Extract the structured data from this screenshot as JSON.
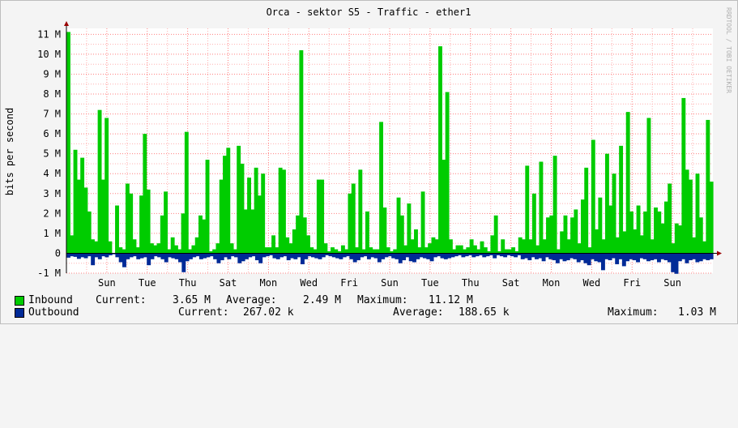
{
  "chart_data": {
    "type": "area",
    "title": "Orca - sektor S5 - Traffic - ether1",
    "ylabel": "bits per second",
    "watermark": "RRDTOOL / TOBI OETIKER",
    "ylim": [
      -1000000,
      11300000
    ],
    "yticks": [
      {
        "value": -1000000,
        "label": "-1 M"
      },
      {
        "value": 0,
        "label": "0"
      },
      {
        "value": 1000000,
        "label": "1 M"
      },
      {
        "value": 2000000,
        "label": "2 M"
      },
      {
        "value": 3000000,
        "label": "3 M"
      },
      {
        "value": 4000000,
        "label": "4 M"
      },
      {
        "value": 5000000,
        "label": "5 M"
      },
      {
        "value": 6000000,
        "label": "6 M"
      },
      {
        "value": 7000000,
        "label": "7 M"
      },
      {
        "value": 8000000,
        "label": "8 M"
      },
      {
        "value": 9000000,
        "label": "9 M"
      },
      {
        "value": 10000000,
        "label": "10 M"
      },
      {
        "value": 11000000,
        "label": "11 M"
      }
    ],
    "xlim": [
      0,
      16
    ],
    "xticks": [
      {
        "value": 1,
        "label": "Sun"
      },
      {
        "value": 2,
        "label": "Tue"
      },
      {
        "value": 3,
        "label": "Thu"
      },
      {
        "value": 4,
        "label": "Sat"
      },
      {
        "value": 5,
        "label": "Mon"
      },
      {
        "value": 6,
        "label": "Wed"
      },
      {
        "value": 7,
        "label": "Fri"
      },
      {
        "value": 8,
        "label": "Sun"
      },
      {
        "value": 9,
        "label": "Tue"
      },
      {
        "value": 10,
        "label": "Thu"
      },
      {
        "value": 11,
        "label": "Sat"
      },
      {
        "value": 12,
        "label": "Mon"
      },
      {
        "value": 13,
        "label": "Wed"
      },
      {
        "value": 14,
        "label": "Fri"
      },
      {
        "value": 15,
        "label": "Sun"
      }
    ],
    "grid": true,
    "colors": {
      "inbound": "#00cc00",
      "outbound": "#002a97",
      "minor_grid": "#ffb0b0",
      "major_grid": "#ff7f7f",
      "axis_arrow": "#990000",
      "canvas": "#ffffff",
      "background": "#f4f4f4"
    },
    "series": [
      {
        "name": "Inbound",
        "color": "#00cc00",
        "values": [
          11.12,
          0.9,
          5.2,
          3.7,
          4.8,
          3.3,
          2.1,
          0.7,
          0.6,
          7.2,
          3.7,
          6.8,
          0.6,
          0,
          2.4,
          0.3,
          0.2,
          3.5,
          3.0,
          0.7,
          0.3,
          2.9,
          6.0,
          3.2,
          0.5,
          0.4,
          0.5,
          1.9,
          3.1,
          0.2,
          0.8,
          0.4,
          0.2,
          2.0,
          6.1,
          0.2,
          0.4,
          0.8,
          1.9,
          1.7,
          4.7,
          0.1,
          0.2,
          0.5,
          3.7,
          4.9,
          5.3,
          0.5,
          0.2,
          5.4,
          4.5,
          2.2,
          3.8,
          2.2,
          4.3,
          2.9,
          4.0,
          0.3,
          0.3,
          0.9,
          0.3,
          4.3,
          4.2,
          0.8,
          0.5,
          1.2,
          1.9,
          10.2,
          1.8,
          0.9,
          0.3,
          0.2,
          3.7,
          3.7,
          0.5,
          0.1,
          0.3,
          0.2,
          0.1,
          0.4,
          0.2,
          3.0,
          3.5,
          0.3,
          4.2,
          0.2,
          2.1,
          0.3,
          0.2,
          0.2,
          6.6,
          2.3,
          0.3,
          0.1,
          0.2,
          2.8,
          1.9,
          0.4,
          2.5,
          0.7,
          1.2,
          0.3,
          3.1,
          0.3,
          0.5,
          0.8,
          0.7,
          10.4,
          4.7,
          8.1,
          0.7,
          0.2,
          0.4,
          0.4,
          0.2,
          0.3,
          0.7,
          0.4,
          0.2,
          0.6,
          0.3,
          0.1,
          0.9,
          1.9,
          0.1,
          0.7,
          0.2,
          0.2,
          0.3,
          0.1,
          0.8,
          0.7,
          4.4,
          0.7,
          3.0,
          0.4,
          4.6,
          0.7,
          1.8,
          1.9,
          4.9,
          0.2,
          1.1,
          1.9,
          0.7,
          1.8,
          2.2,
          0.5,
          2.7,
          4.3,
          0.3,
          5.7,
          1.2,
          2.8,
          0.7,
          5.0,
          2.4,
          4.0,
          0.8,
          5.4,
          1.1,
          7.1,
          2.1,
          1.2,
          2.4,
          0.9,
          2.1,
          6.8,
          0.7,
          2.3,
          2.1,
          1.5,
          2.6,
          3.5,
          0.5,
          1.5,
          1.4,
          7.8,
          4.2,
          3.7,
          0.8,
          4.0,
          1.8,
          0.6,
          6.7,
          3.6
        ]
      },
      {
        "name": "Outbound",
        "color": "#002a97",
        "values": [
          -0.22,
          -0.15,
          -0.18,
          -0.28,
          -0.2,
          -0.25,
          -0.15,
          -0.6,
          -0.2,
          -0.3,
          -0.15,
          -0.2,
          -0.1,
          -0.05,
          -0.2,
          -0.45,
          -0.7,
          -0.3,
          -0.2,
          -0.15,
          -0.3,
          -0.25,
          -0.2,
          -0.6,
          -0.3,
          -0.15,
          -0.2,
          -0.3,
          -0.45,
          -0.2,
          -0.25,
          -0.3,
          -0.45,
          -0.95,
          -0.4,
          -0.3,
          -0.2,
          -0.15,
          -0.3,
          -0.25,
          -0.2,
          -0.15,
          -0.3,
          -0.5,
          -0.35,
          -0.2,
          -0.3,
          -0.15,
          -0.2,
          -0.5,
          -0.4,
          -0.3,
          -0.2,
          -0.15,
          -0.35,
          -0.5,
          -0.2,
          -0.15,
          -0.1,
          -0.25,
          -0.3,
          -0.2,
          -0.15,
          -0.35,
          -0.25,
          -0.3,
          -0.2,
          -0.55,
          -0.3,
          -0.15,
          -0.2,
          -0.25,
          -0.3,
          -0.2,
          -0.1,
          -0.15,
          -0.2,
          -0.25,
          -0.3,
          -0.2,
          -0.15,
          -0.3,
          -0.45,
          -0.35,
          -0.2,
          -0.15,
          -0.3,
          -0.2,
          -0.25,
          -0.45,
          -0.3,
          -0.2,
          -0.15,
          -0.25,
          -0.3,
          -0.5,
          -0.35,
          -0.2,
          -0.4,
          -0.45,
          -0.3,
          -0.2,
          -0.25,
          -0.3,
          -0.4,
          -0.2,
          -0.15,
          -0.25,
          -0.3,
          -0.25,
          -0.2,
          -0.15,
          -0.1,
          -0.2,
          -0.15,
          -0.1,
          -0.2,
          -0.15,
          -0.1,
          -0.2,
          -0.15,
          -0.1,
          -0.25,
          -0.1,
          -0.15,
          -0.2,
          -0.1,
          -0.15,
          -0.2,
          -0.1,
          -0.3,
          -0.25,
          -0.35,
          -0.2,
          -0.3,
          -0.25,
          -0.4,
          -0.2,
          -0.3,
          -0.35,
          -0.5,
          -0.3,
          -0.4,
          -0.35,
          -0.25,
          -0.3,
          -0.45,
          -0.35,
          -0.5,
          -0.6,
          -0.3,
          -0.4,
          -0.45,
          -0.85,
          -0.3,
          -0.35,
          -0.25,
          -0.55,
          -0.3,
          -0.65,
          -0.4,
          -0.3,
          -0.35,
          -0.45,
          -0.25,
          -0.3,
          -0.4,
          -0.35,
          -0.3,
          -0.45,
          -0.3,
          -0.35,
          -0.45,
          -0.95,
          -1.03,
          -0.4,
          -0.3,
          -0.5,
          -0.35,
          -0.3,
          -0.45,
          -0.4,
          -0.3,
          -0.35,
          -0.3
        ]
      }
    ]
  },
  "legend": {
    "inbound": {
      "label": "Inbound",
      "current_label": "Current:",
      "current": "3.65 M",
      "average_label": "Average:",
      "average": "2.49 M",
      "maximum_label": "Maximum:",
      "maximum": "11.12 M"
    },
    "outbound": {
      "label": "Outbound",
      "current_label": "Current:",
      "current": "267.02 k",
      "average_label": "Average:",
      "average": "188.65 k",
      "maximum_label": "Maximum:",
      "maximum": "1.03 M"
    }
  }
}
